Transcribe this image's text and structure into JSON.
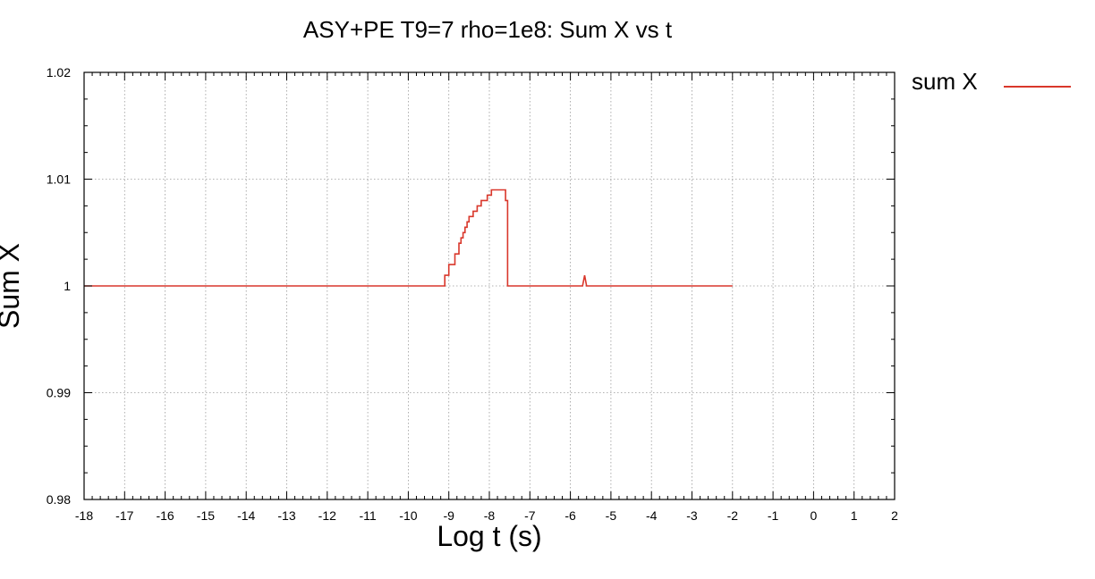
{
  "chart_data": {
    "type": "line",
    "title": "ASY+PE T9=7 rho=1e8: Sum X  vs t",
    "xlabel": "Log t (s)",
    "ylabel": "Sum X",
    "xlim": [
      -18,
      2
    ],
    "ylim": [
      0.98,
      1.02
    ],
    "x_ticks": [
      -18,
      -17,
      -16,
      -15,
      -14,
      -13,
      -12,
      -11,
      -10,
      -9,
      -8,
      -7,
      -6,
      -5,
      -4,
      -3,
      -2,
      -1,
      0,
      1,
      2
    ],
    "x_tick_labels": [
      "-18",
      "-17",
      "-16",
      "-15",
      "-14",
      "-13",
      "-12",
      "-11",
      "-10",
      "-9",
      "-8",
      "-7",
      "-6",
      "-5",
      "-4",
      "-3",
      "-2",
      "-1",
      "0",
      "1",
      "2"
    ],
    "y_ticks": [
      0.98,
      0.99,
      1.0,
      1.01,
      1.02
    ],
    "y_tick_labels": [
      "0.98",
      "0.99",
      "1",
      "1.01",
      "1.02"
    ],
    "grid": true,
    "legend_position": "top-right-outside",
    "series": [
      {
        "name": "sum X",
        "color": "#d9372b",
        "x": [
          -18,
          -9.15,
          -9.1,
          -9.1,
          -9.0,
          -9.0,
          -8.95,
          -8.95,
          -8.85,
          -8.85,
          -8.75,
          -8.75,
          -8.7,
          -8.7,
          -8.65,
          -8.65,
          -8.6,
          -8.6,
          -8.55,
          -8.55,
          -8.5,
          -8.5,
          -8.45,
          -8.45,
          -8.4,
          -8.4,
          -8.35,
          -8.35,
          -8.3,
          -8.3,
          -8.2,
          -8.2,
          -8.15,
          -8.15,
          -8.05,
          -8.05,
          -7.95,
          -7.95,
          -7.6,
          -7.6,
          -7.55,
          -7.55,
          -5.7,
          -5.65,
          -5.6,
          -5.6,
          -2
        ],
        "y": [
          1.0,
          1.0,
          1.0,
          1.001,
          1.001,
          1.002,
          1.002,
          1.002,
          1.002,
          1.003,
          1.003,
          1.004,
          1.004,
          1.0045,
          1.0045,
          1.005,
          1.005,
          1.0055,
          1.0055,
          1.006,
          1.006,
          1.0065,
          1.0065,
          1.0065,
          1.0065,
          1.007,
          1.007,
          1.007,
          1.007,
          1.0075,
          1.0075,
          1.008,
          1.008,
          1.008,
          1.008,
          1.0085,
          1.0085,
          1.009,
          1.009,
          1.008,
          1.008,
          1.0,
          1.0,
          1.001,
          1.0,
          1.0,
          1.0
        ]
      }
    ]
  }
}
